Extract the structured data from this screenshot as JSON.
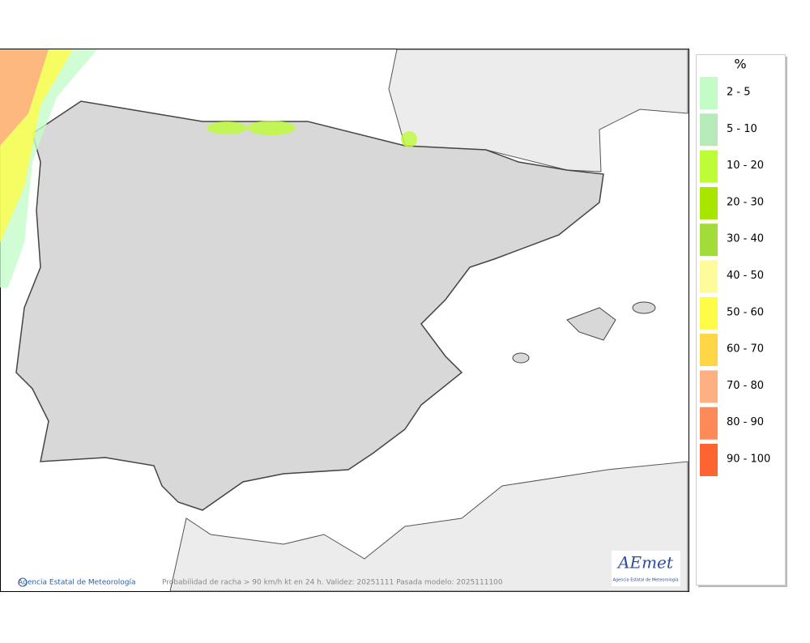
{
  "legend": {
    "title": "%",
    "items": [
      {
        "label": "2 - 5",
        "color": "#c4fcc8"
      },
      {
        "label": "5 - 10",
        "color": "#b6eab8"
      },
      {
        "label": "10 - 20",
        "color": "#befc38"
      },
      {
        "label": "20 - 30",
        "color": "#a8e600"
      },
      {
        "label": "30 - 40",
        "color": "#a2dc38"
      },
      {
        "label": "40 - 50",
        "color": "#fefc9a"
      },
      {
        "label": "50 - 60",
        "color": "#fefc46"
      },
      {
        "label": "60 - 70",
        "color": "#fed646"
      },
      {
        "label": "70 - 80",
        "color": "#feb082"
      },
      {
        "label": "80 - 90",
        "color": "#fe8a5a"
      },
      {
        "label": "90 - 100",
        "color": "#fe6432"
      }
    ]
  },
  "footer": {
    "agency": "Agencia Estatal de Meteorología",
    "caption": "Probabilidad de racha > 90 km/h kt en 24 h. Validez: 20251111 Pasada modelo: 2025111100"
  },
  "logo": {
    "name": "AEmet",
    "subtitle": "Agencia Estatal de Meteorología"
  }
}
